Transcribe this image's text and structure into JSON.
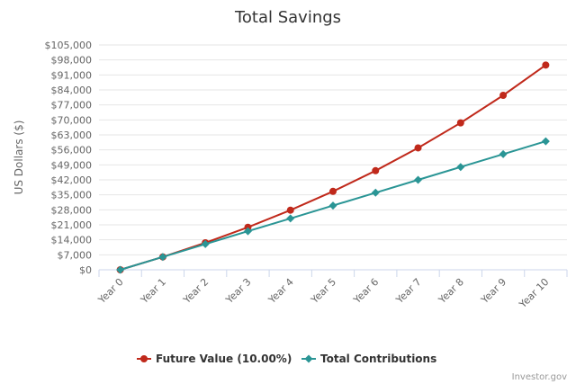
{
  "chart_data": {
    "type": "line",
    "title": "Total Savings",
    "xlabel": "",
    "ylabel": "US Dollars ($)",
    "categories": [
      "Year 0",
      "Year 1",
      "Year 2",
      "Year 3",
      "Year 4",
      "Year 5",
      "Year 6",
      "Year 7",
      "Year 8",
      "Year 9",
      "Year 10"
    ],
    "yticks": [
      "$0",
      "$7,000",
      "$14,000",
      "$21,000",
      "$28,000",
      "$35,000",
      "$42,000",
      "$49,000",
      "$56,000",
      "$63,000",
      "$70,000",
      "$77,000",
      "$84,000",
      "$91,000",
      "$98,000",
      "$105,000"
    ],
    "ylim": [
      0,
      105000
    ],
    "grid": "horizontal",
    "legend_position": "bottom",
    "credit": "Investor.gov",
    "series": [
      {
        "name": "Future Value (10.00%)",
        "color": "#c0291b",
        "marker": "circle",
        "values": [
          0,
          6000,
          12600,
          19860,
          27846,
          36630,
          46293,
          56923,
          68615,
          81476,
          95625
        ]
      },
      {
        "name": "Total Contributions",
        "color": "#2a9595",
        "marker": "diamond",
        "values": [
          0,
          6000,
          12000,
          18000,
          24000,
          30000,
          36000,
          42000,
          48000,
          54000,
          60000
        ]
      }
    ]
  }
}
